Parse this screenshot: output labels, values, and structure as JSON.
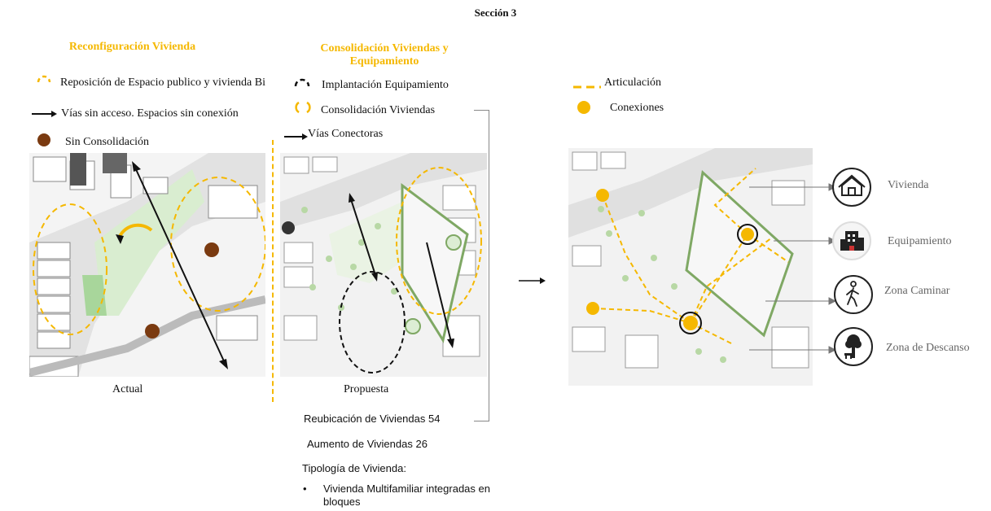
{
  "page_title": "Sección 3",
  "panels": {
    "left": {
      "title": "Reconfiguración Vivienda",
      "legend": [
        {
          "symbol": "yellow-dashed-arc-icon",
          "text": "Reposición de Espacio publico y vivienda Bi"
        },
        {
          "symbol": "black-arrow-icon",
          "text": "Vías sin acceso. Espacios sin conexión"
        },
        {
          "symbol": "brown-dot-icon",
          "text": "Sin Consolidación"
        }
      ],
      "caption": "Actual"
    },
    "middle": {
      "title": "Consolidación Viviendas y Equipamiento",
      "legend": [
        {
          "symbol": "black-dashed-arc-icon",
          "text": "Implantación Equipamiento"
        },
        {
          "symbol": "yellow-dashed-arc-icon",
          "text": "Consolidación Viviendas"
        },
        {
          "symbol": "black-arrow-icon",
          "text": "Vías Conectoras"
        }
      ],
      "caption": "Propuesta"
    },
    "right": {
      "legend": [
        {
          "symbol": "yellow-dash-line-icon",
          "text": "Articulación"
        },
        {
          "symbol": "yellow-dot-icon",
          "text": "Conexiones"
        }
      ],
      "icons": [
        {
          "icon": "house-icon",
          "label": "Vivienda"
        },
        {
          "icon": "building-icon",
          "label": "Equipamiento"
        },
        {
          "icon": "walking-person-icon",
          "label": "Zona Caminar"
        },
        {
          "icon": "tree-bench-icon",
          "label": "Zona de Descanso"
        }
      ]
    }
  },
  "info": {
    "reubicacion": "Reubicación de Viviendas 54",
    "aumento": "Aumento de Viviendas 26",
    "tipologia_title": "Tipología de Vivienda:",
    "bullet_line1": "Vivienda Multifamiliar integradas en",
    "bullet_line2": "bloques",
    "bullet": "•"
  },
  "colors": {
    "accent_yellow": "#f5b800",
    "brown": "#7a3a10",
    "green": "#cfe6c4"
  }
}
